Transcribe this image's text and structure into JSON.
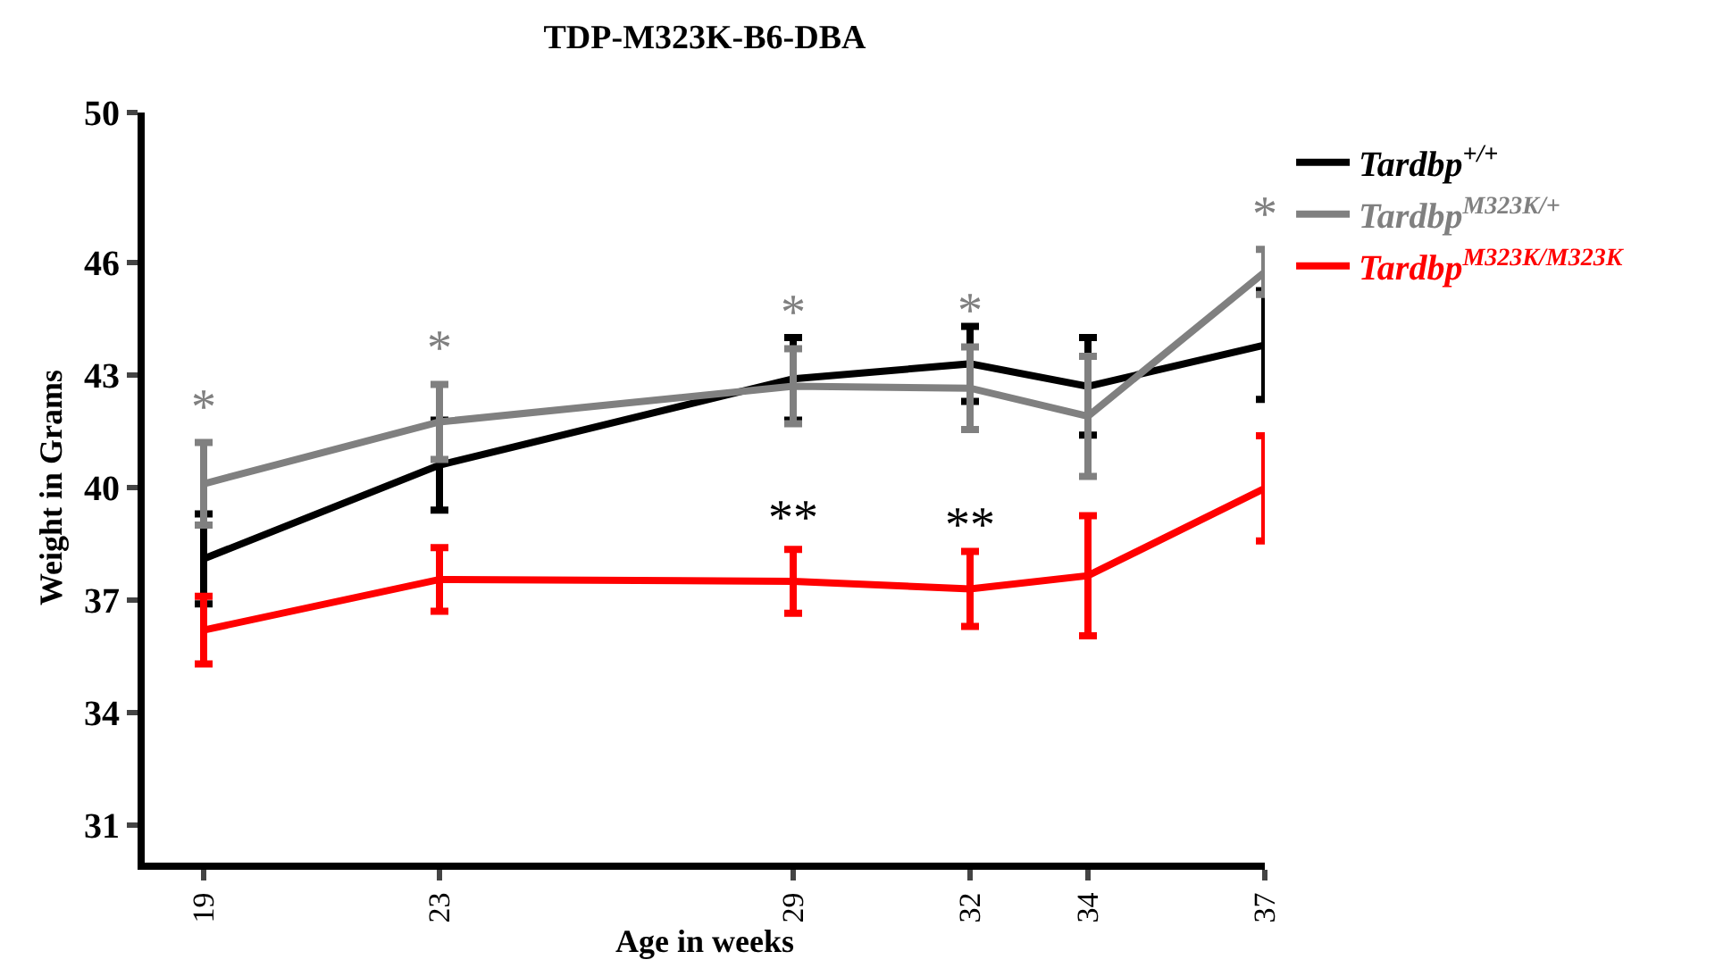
{
  "chart_data": {
    "type": "line",
    "title": "TDP-M323K-B6-DBA",
    "xlabel": "Age in weeks",
    "ylabel": "Weight in Grams",
    "x": [
      19,
      23,
      29,
      32,
      34,
      37
    ],
    "series": [
      {
        "name": "Tardbp$^{+/+}$",
        "color": "#000000",
        "values": [
          38.1,
          40.6,
          42.9,
          43.3,
          42.7,
          43.8
        ],
        "errors": [
          1.2,
          1.2,
          1.1,
          1.0,
          1.3,
          1.45
        ]
      },
      {
        "name": "Tardbp$^{M323K/+}$",
        "color": "#808080",
        "values": [
          40.1,
          41.75,
          42.7,
          42.65,
          41.9,
          45.75
        ],
        "errors": [
          1.1,
          1.0,
          1.0,
          1.1,
          1.6,
          0.6
        ],
        "value_labels": [
          "*",
          "*",
          "*",
          "*",
          null,
          "*"
        ]
      },
      {
        "name": "Tardbp$^{M323K/M323K}$",
        "color": "#ff0000",
        "values": [
          36.2,
          37.55,
          37.5,
          37.3,
          37.65,
          39.98
        ],
        "errors": [
          0.9,
          0.85,
          0.85,
          1.0,
          1.6,
          1.4
        ]
      }
    ],
    "annotations": [
      {
        "text": "**",
        "x": 29,
        "y": 37.5
      },
      {
        "text": "**",
        "x": 32,
        "y": 37.3
      }
    ],
    "xlim": [
      18,
      37
    ],
    "xticks": [
      19,
      23,
      29,
      32,
      34,
      37
    ],
    "ylim": [
      30,
      50
    ],
    "yticks": [
      31,
      34,
      37,
      40,
      43,
      46,
      50
    ],
    "legend": "top right",
    "marker": "none",
    "line_style": "solid"
  }
}
